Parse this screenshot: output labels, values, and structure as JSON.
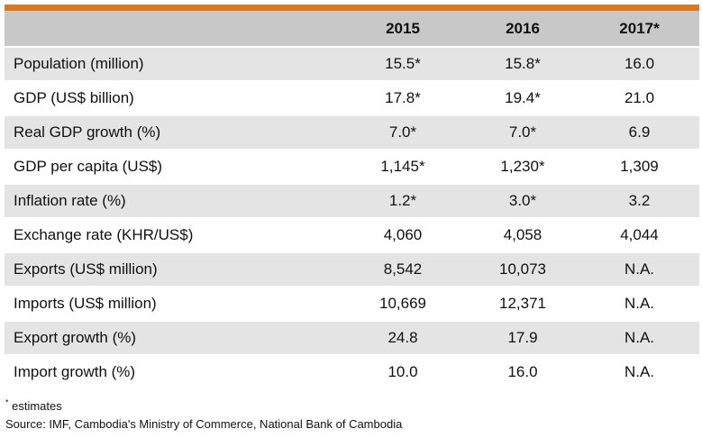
{
  "chart_data": {
    "type": "table",
    "columns": [
      "",
      "2015",
      "2016",
      "2017*"
    ],
    "rows": [
      {
        "label": "Population (million)",
        "values": [
          "15.5*",
          "15.8*",
          "16.0"
        ]
      },
      {
        "label": "GDP (US$ billion)",
        "values": [
          "17.8*",
          "19.4*",
          "21.0"
        ]
      },
      {
        "label": "Real GDP growth (%)",
        "values": [
          "7.0*",
          "7.0*",
          "6.9"
        ]
      },
      {
        "label": "GDP per capita (US$)",
        "values": [
          "1,145*",
          "1,230*",
          "1,309"
        ]
      },
      {
        "label": "Inflation rate (%)",
        "values": [
          "1.2*",
          "3.0*",
          "3.2"
        ]
      },
      {
        "label": "Exchange rate (KHR/US$)",
        "values": [
          "4,060",
          "4,058",
          "4,044"
        ]
      },
      {
        "label": "Exports (US$ million)",
        "values": [
          "8,542",
          "10,073",
          "N.A."
        ]
      },
      {
        "label": "Imports (US$ million)",
        "values": [
          "10,669",
          "12,371",
          "N.A."
        ]
      },
      {
        "label": "Export growth (%)",
        "values": [
          "24.8",
          "17.9",
          "N.A."
        ]
      },
      {
        "label": "Import growth (%)",
        "values": [
          "10.0",
          "16.0",
          "N.A."
        ]
      }
    ]
  },
  "notes": {
    "footnote_mark": "*",
    "footnote_text": " estimates",
    "source": "Source: IMF, Cambodia's Ministry of Commerce, National Bank of Cambodia"
  },
  "colors": {
    "accent_bar": "#e6740f",
    "header_bg": "#c8c8c8",
    "row_shade": "#e4e4e4"
  }
}
